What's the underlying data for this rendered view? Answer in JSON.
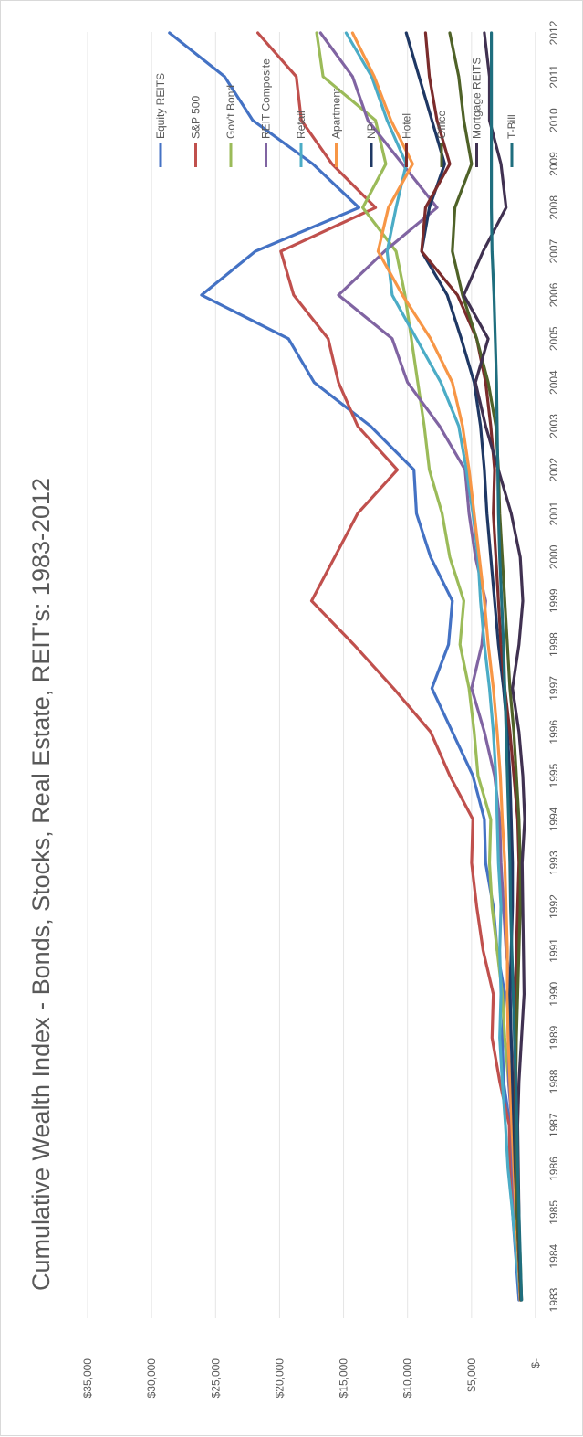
{
  "chart_data": {
    "type": "line",
    "title": "Cumulative Wealth Index - Bonds, Stocks, Real Estate, REIT's: 1983-2012",
    "xlabel": "",
    "ylabel": "",
    "ylim": [
      0,
      35000
    ],
    "ytick_values": [
      0,
      5000,
      10000,
      15000,
      20000,
      25000,
      30000,
      35000
    ],
    "ytick_labels": [
      "$-",
      "$5,000",
      "$10,000",
      "$15,000",
      "$20,000",
      "$25,000",
      "$30,000",
      "$35,000"
    ],
    "grid": true,
    "legend_position": "right",
    "categories": [
      "1983",
      "1984",
      "1985",
      "1986",
      "1987",
      "1988",
      "1989",
      "1990",
      "1991",
      "1992",
      "1993",
      "1994",
      "1995",
      "1996",
      "1997",
      "1998",
      "1999",
      "2000",
      "2001",
      "2002",
      "2003",
      "2004",
      "2005",
      "2006",
      "2007",
      "2008",
      "2009",
      "2010",
      "2011",
      "2012"
    ],
    "series": [
      {
        "name": "Equity REITS",
        "color": "#4472c4",
        "values": [
          1300,
          1550,
          1800,
          2000,
          2000,
          2500,
          2600,
          2400,
          3000,
          3300,
          3900,
          4000,
          4900,
          6500,
          8100,
          6800,
          6500,
          8200,
          9300,
          9500,
          12900,
          17300,
          19300,
          26100,
          21900,
          13800,
          17400,
          22100,
          24300,
          28600
        ]
      },
      {
        "name": "S&P 500",
        "color": "#c0504d",
        "values": [
          1200,
          1300,
          1650,
          2000,
          2050,
          2800,
          3400,
          3300,
          4100,
          4600,
          5000,
          4900,
          6700,
          8200,
          11100,
          14200,
          17500,
          15700,
          13900,
          10800,
          13900,
          15400,
          16200,
          18900,
          19900,
          12500,
          15900,
          18300,
          18700,
          21700
        ]
      },
      {
        "name": "Gov't Bond",
        "color": "#9bbb59",
        "values": [
          1100,
          1200,
          1400,
          1700,
          1800,
          2100,
          2400,
          2600,
          3000,
          3400,
          3600,
          3500,
          4500,
          4800,
          5200,
          5900,
          5600,
          6700,
          7300,
          8300,
          8700,
          9200,
          9700,
          10200,
          10900,
          13500,
          11700,
          12500,
          16600,
          17100
        ]
      },
      {
        "name": "REIT Composite",
        "color": "#8064a2",
        "values": [
          1200,
          1350,
          1600,
          1800,
          1850,
          2100,
          2100,
          1900,
          2300,
          2500,
          2700,
          2800,
          3200,
          4000,
          5000,
          4200,
          3900,
          4700,
          5200,
          5500,
          7500,
          10000,
          11200,
          15400,
          11800,
          7700,
          10400,
          13100,
          14300,
          16800
        ]
      },
      {
        "name": "Retail",
        "color": "#4bacc6",
        "values": [
          1200,
          1500,
          1800,
          2150,
          2350,
          2600,
          2800,
          2700,
          2800,
          2700,
          2900,
          3000,
          3100,
          3300,
          3600,
          4000,
          4300,
          4500,
          4900,
          5400,
          6000,
          7400,
          9300,
          11200,
          11600,
          10900,
          10100,
          11600,
          12800,
          14800
        ]
      },
      {
        "name": "Apartment",
        "color": "#f79646",
        "values": [
          1200,
          1350,
          1550,
          1700,
          1850,
          2000,
          2150,
          2200,
          2200,
          2300,
          2400,
          2600,
          2750,
          3000,
          3300,
          3700,
          4000,
          4400,
          4800,
          5200,
          5700,
          6500,
          8200,
          10400,
          12300,
          11500,
          9600,
          11300,
          12600,
          14300
        ]
      },
      {
        "name": "NPI",
        "color": "#1f3864",
        "values": [
          1150,
          1300,
          1450,
          1600,
          1700,
          1800,
          1900,
          2000,
          1900,
          1800,
          1800,
          1900,
          2000,
          2200,
          2500,
          2900,
          3200,
          3500,
          3800,
          4000,
          4300,
          4800,
          5800,
          6900,
          8900,
          8300,
          7100,
          8100,
          9100,
          10100
        ]
      },
      {
        "name": "Hotel",
        "color": "#7b2c2c",
        "values": [
          1150,
          1300,
          1450,
          1500,
          1550,
          1600,
          1650,
          1600,
          1500,
          1400,
          1300,
          1400,
          1700,
          2000,
          2400,
          2700,
          2900,
          3100,
          3300,
          3200,
          3500,
          3900,
          4600,
          6100,
          8900,
          8600,
          6700,
          7700,
          8300,
          8600
        ]
      },
      {
        "name": "Office",
        "color": "#4f6228",
        "values": [
          1150,
          1300,
          1450,
          1550,
          1550,
          1550,
          1500,
          1400,
          1300,
          1200,
          1200,
          1300,
          1500,
          1700,
          2000,
          2200,
          2400,
          2600,
          2800,
          2900,
          3100,
          3700,
          4600,
          5700,
          6500,
          6300,
          5000,
          5600,
          6000,
          6700
        ]
      },
      {
        "name": "Mortgage REITS",
        "color": "#403151",
        "values": [
          1100,
          1250,
          1300,
          1350,
          1400,
          1300,
          1100,
          900,
          950,
          1000,
          1050,
          850,
          1000,
          1300,
          1800,
          1300,
          1000,
          1200,
          1900,
          2900,
          3900,
          4700,
          3700,
          5600,
          4100,
          2300,
          2700,
          3600,
          3600,
          4000
        ]
      },
      {
        "name": "T-Bill",
        "color": "#1f6e7e",
        "values": [
          1100,
          1200,
          1300,
          1400,
          1450,
          1550,
          1650,
          1750,
          1850,
          1950,
          2000,
          2100,
          2200,
          2300,
          2400,
          2500,
          2650,
          2800,
          2900,
          2950,
          3000,
          3050,
          3150,
          3250,
          3400,
          3450,
          3450,
          3450,
          3450,
          3450
        ]
      }
    ]
  }
}
